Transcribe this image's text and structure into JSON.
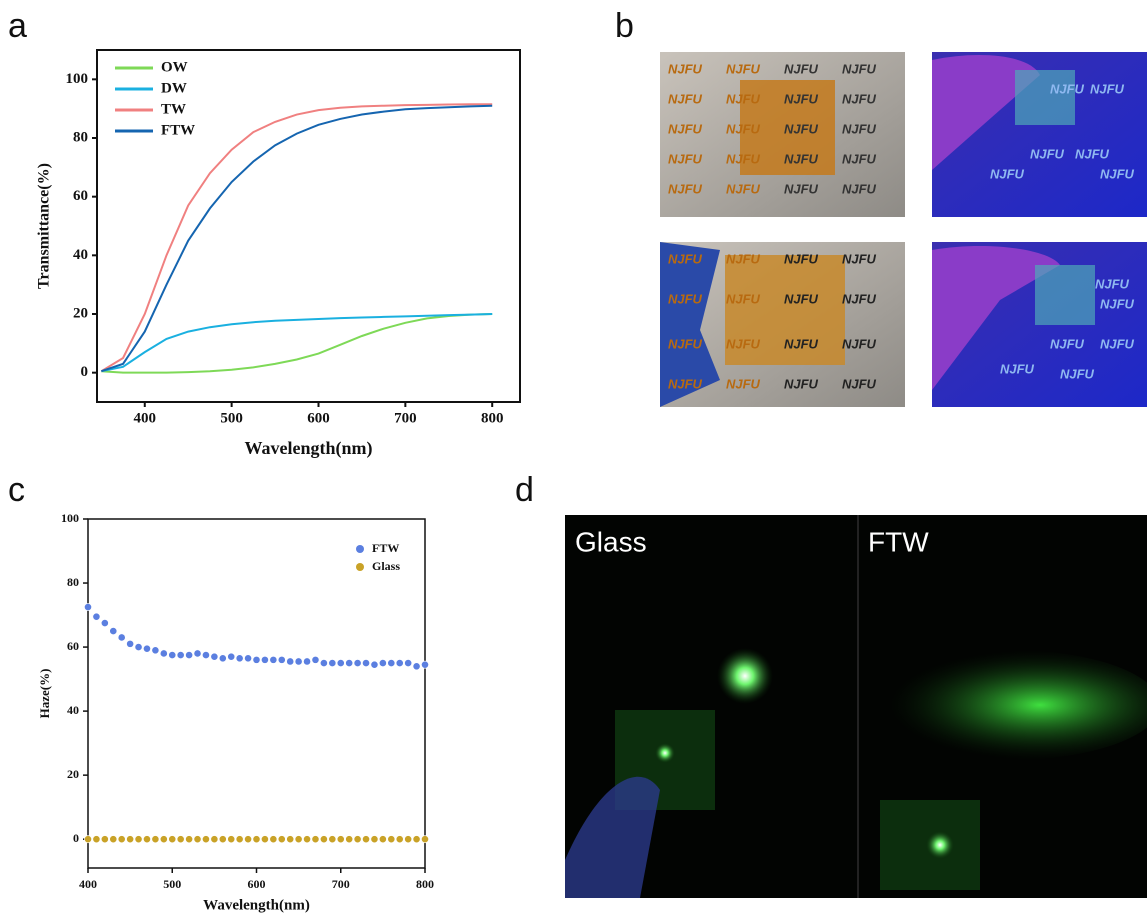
{
  "panels": {
    "letters": [
      "a",
      "b",
      "c",
      "d"
    ],
    "photo_text": "NJFU",
    "photo_labels": [
      "Glass",
      "FTW"
    ]
  },
  "chart_data": [
    {
      "type": "line",
      "xlabel": "Wavelength(nm)",
      "ylabel": "Transmittance(%)",
      "legend": "upper left",
      "x": [
        350,
        375,
        400,
        425,
        450,
        475,
        500,
        525,
        550,
        575,
        600,
        625,
        650,
        675,
        700,
        725,
        750,
        775,
        800
      ],
      "series": [
        {
          "name": "OW",
          "color": "#7ed957",
          "values": [
            0.5,
            0,
            0,
            0,
            0.2,
            0.5,
            1,
            1.8,
            3,
            4.5,
            6.5,
            9.5,
            12.5,
            15,
            17,
            18.5,
            19.3,
            19.8,
            20
          ]
        },
        {
          "name": "DW",
          "color": "#1ab0e0",
          "values": [
            0.5,
            2,
            7,
            11.5,
            14,
            15.5,
            16.5,
            17.2,
            17.7,
            18,
            18.3,
            18.6,
            18.8,
            19,
            19.2,
            19.4,
            19.6,
            19.8,
            20
          ]
        },
        {
          "name": "TW",
          "color": "#f08080",
          "values": [
            0.5,
            5,
            20,
            40,
            57,
            68,
            76,
            82,
            85.5,
            88,
            89.5,
            90.3,
            90.8,
            91,
            91.2,
            91.3,
            91.4,
            91.5,
            91.5
          ]
        },
        {
          "name": "FTW",
          "color": "#1565b0",
          "values": [
            0.5,
            3,
            14,
            30,
            45,
            56,
            65,
            72,
            77.5,
            81.5,
            84.5,
            86.5,
            88,
            89,
            89.8,
            90.2,
            90.5,
            90.8,
            91
          ]
        }
      ],
      "xlim": [
        345,
        832
      ],
      "ylim": [
        -10,
        110
      ],
      "xticks": [
        400,
        500,
        600,
        700,
        800
      ],
      "yticks": [
        0,
        20,
        40,
        60,
        80,
        100
      ]
    },
    {
      "type": "scatter",
      "xlabel": "Wavelength(nm)",
      "ylabel": "Haze(%)",
      "legend": "upper right",
      "x": [
        400,
        410,
        420,
        430,
        440,
        450,
        460,
        470,
        480,
        490,
        500,
        510,
        520,
        530,
        540,
        550,
        560,
        570,
        580,
        590,
        600,
        610,
        620,
        630,
        640,
        650,
        660,
        670,
        680,
        690,
        700,
        710,
        720,
        730,
        740,
        750,
        760,
        770,
        780,
        790,
        800
      ],
      "series": [
        {
          "name": "FTW",
          "color": "#5b7fe0",
          "values": [
            72.5,
            69.5,
            67.5,
            65,
            63,
            61,
            60,
            59.5,
            59,
            58,
            57.5,
            57.5,
            57.5,
            58,
            57.5,
            57,
            56.5,
            57,
            56.5,
            56.5,
            56,
            56,
            56,
            56,
            55.5,
            55.5,
            55.5,
            56,
            55,
            55,
            55,
            55,
            55,
            55,
            54.5,
            55,
            55,
            55,
            55,
            54,
            54.5
          ]
        },
        {
          "name": "Glass",
          "color": "#c9a227",
          "values": [
            0,
            0,
            0,
            0,
            0,
            0,
            0,
            0,
            0,
            0,
            0,
            0,
            0,
            0,
            0,
            0,
            0,
            0,
            0,
            0,
            0,
            0,
            0,
            0,
            0,
            0,
            0,
            0,
            0,
            0,
            0,
            0,
            0,
            0,
            0,
            0,
            0,
            0,
            0,
            0,
            0
          ]
        }
      ],
      "xlim": [
        400,
        800
      ],
      "ylim": [
        -9,
        100
      ],
      "xticks": [
        400,
        500,
        600,
        700,
        800
      ],
      "yticks": [
        0,
        20,
        40,
        60,
        80,
        100
      ]
    }
  ]
}
